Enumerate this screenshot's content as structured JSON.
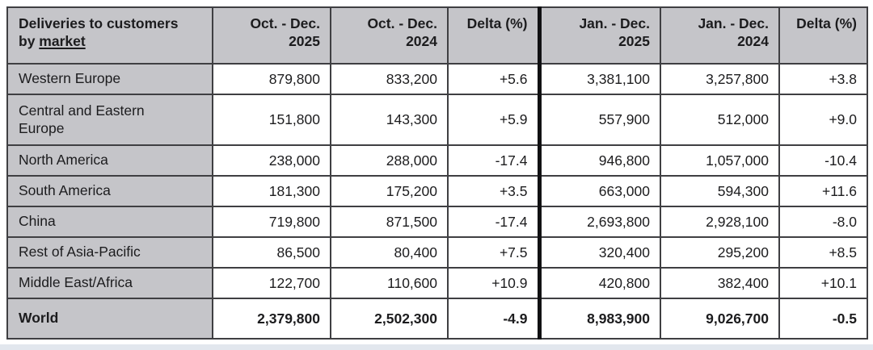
{
  "table": {
    "corner": {
      "line1": "Deliveries to customers",
      "line2_prefix": "by ",
      "line2_link": "market"
    },
    "headers": [
      {
        "line1": "Oct. - Dec.",
        "line2": "2025"
      },
      {
        "line1": "Oct. - Dec.",
        "line2": "2024"
      },
      {
        "line1": "Delta (%)",
        "line2": ""
      },
      {
        "line1": "Jan. - Dec.",
        "line2": "2025"
      },
      {
        "line1": "Jan. - Dec.",
        "line2": "2024"
      },
      {
        "line1": "Delta (%)",
        "line2": ""
      }
    ],
    "rows": [
      {
        "market": "Western Europe",
        "q4_2025": "879,800",
        "q4_2024": "833,200",
        "q4_delta": "+5.6",
        "fy_2025": "3,381,100",
        "fy_2024": "3,257,800",
        "fy_delta": "+3.8"
      },
      {
        "market": "Central and Eastern Europe",
        "q4_2025": "151,800",
        "q4_2024": "143,300",
        "q4_delta": "+5.9",
        "fy_2025": "557,900",
        "fy_2024": "512,000",
        "fy_delta": "+9.0"
      },
      {
        "market": "North America",
        "q4_2025": "238,000",
        "q4_2024": "288,000",
        "q4_delta": "-17.4",
        "fy_2025": "946,800",
        "fy_2024": "1,057,000",
        "fy_delta": "-10.4"
      },
      {
        "market": "South America",
        "q4_2025": "181,300",
        "q4_2024": "175,200",
        "q4_delta": "+3.5",
        "fy_2025": "663,000",
        "fy_2024": "594,300",
        "fy_delta": "+11.6"
      },
      {
        "market": "China",
        "q4_2025": "719,800",
        "q4_2024": "871,500",
        "q4_delta": "-17.4",
        "fy_2025": "2,693,800",
        "fy_2024": "2,928,100",
        "fy_delta": "-8.0"
      },
      {
        "market": "Rest of Asia-Pacific",
        "q4_2025": "86,500",
        "q4_2024": "80,400",
        "q4_delta": "+7.5",
        "fy_2025": "320,400",
        "fy_2024": "295,200",
        "fy_delta": "+8.5"
      },
      {
        "market": "Middle East/Africa",
        "q4_2025": "122,700",
        "q4_2024": "110,600",
        "q4_delta": "+10.9",
        "fy_2025": "420,800",
        "fy_2024": "382,400",
        "fy_delta": "+10.1"
      },
      {
        "market": "World",
        "q4_2025": "2,379,800",
        "q4_2024": "2,502,300",
        "q4_delta": "-4.9",
        "fy_2025": "8,983,900",
        "fy_2024": "9,026,700",
        "fy_delta": "-0.5"
      }
    ],
    "colors": {
      "header_bg": "#c5c5c9",
      "cell_bg": "#ffffff",
      "border": "#3f3f42",
      "thick_divider": "#111113",
      "text": "#1c1c1e",
      "footer_strip": "#e2e7ee"
    }
  },
  "chart_data": {
    "type": "table",
    "title": "Deliveries to customers by market",
    "columns": [
      "Deliveries to customers by market",
      "Oct. - Dec. 2025",
      "Oct. - Dec. 2024",
      "Delta (%)",
      "Jan. - Dec. 2025",
      "Jan. - Dec. 2024",
      "Delta (%)"
    ],
    "rows": [
      [
        "Western Europe",
        879800,
        833200,
        5.6,
        3381100,
        3257800,
        3.8
      ],
      [
        "Central and Eastern Europe",
        151800,
        143300,
        5.9,
        557900,
        512000,
        9.0
      ],
      [
        "North America",
        238000,
        288000,
        -17.4,
        946800,
        1057000,
        -10.4
      ],
      [
        "South America",
        181300,
        175200,
        3.5,
        663000,
        594300,
        11.6
      ],
      [
        "China",
        719800,
        871500,
        -17.4,
        2693800,
        2928100,
        -8.0
      ],
      [
        "Rest of Asia-Pacific",
        86500,
        80400,
        7.5,
        320400,
        295200,
        8.5
      ],
      [
        "Middle East/Africa",
        122700,
        110600,
        10.9,
        420800,
        382400,
        10.1
      ],
      [
        "World",
        2379800,
        2502300,
        -4.9,
        8983900,
        9026700,
        -0.5
      ]
    ]
  }
}
